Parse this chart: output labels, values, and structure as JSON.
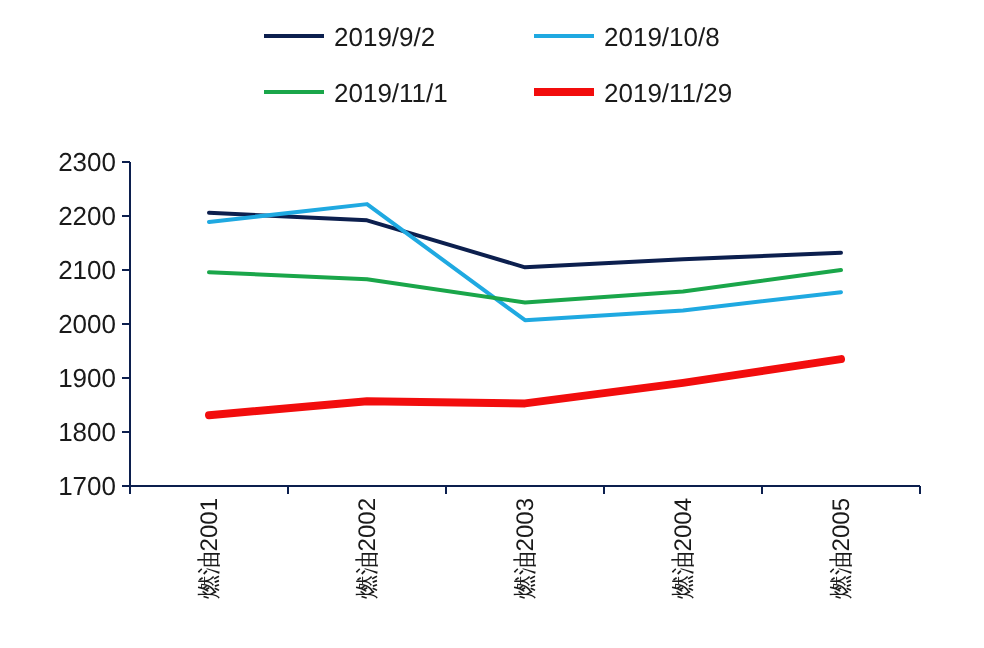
{
  "chart_data": {
    "type": "line",
    "categories": [
      "燃油2001",
      "燃油2002",
      "燃油2003",
      "燃油2004",
      "燃油2005"
    ],
    "series": [
      {
        "name": "2019/9/2",
        "color": "#0c1f4e",
        "values": [
          2206,
          2192,
          2105,
          2120,
          2132
        ]
      },
      {
        "name": "2019/10/8",
        "color": "#1fa9e1",
        "values": [
          2189,
          2222,
          2007,
          2025,
          2059
        ]
      },
      {
        "name": "2019/11/1",
        "color": "#1aa64a",
        "values": [
          2096,
          2083,
          2040,
          2060,
          2100
        ]
      },
      {
        "name": "2019/11/29",
        "color": "#f20d0d",
        "values": [
          1831,
          1857,
          1853,
          1891,
          1935
        ]
      }
    ],
    "ylim": [
      1700,
      2300
    ],
    "yticks": [
      1700,
      1800,
      1900,
      2000,
      2100,
      2200,
      2300
    ],
    "grid": false,
    "legend": "top",
    "marker": "none",
    "line_style": "solid"
  }
}
